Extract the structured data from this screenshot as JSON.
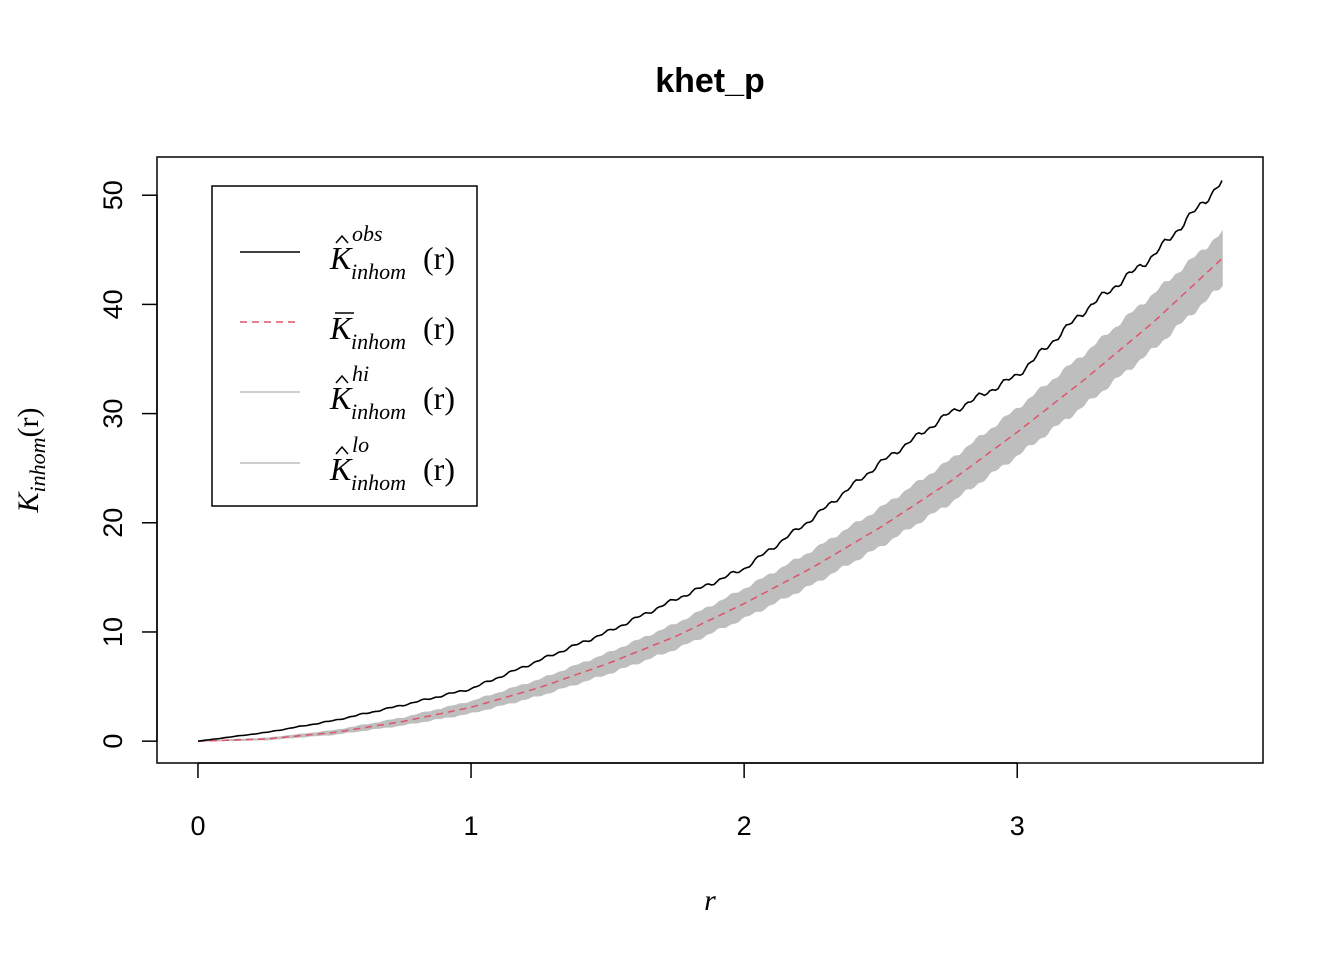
{
  "chart_data": {
    "type": "line",
    "title": "khet_p",
    "xlabel": "r",
    "ylabel": {
      "main": "K",
      "sub": "inhom",
      "arg": "(r)"
    },
    "xlim": [
      -0.15,
      3.9
    ],
    "ylim": [
      -2,
      53.5
    ],
    "x_ticks": [
      0,
      1,
      2,
      3
    ],
    "y_ticks": [
      0,
      10,
      20,
      30,
      40,
      50
    ],
    "grid": false,
    "legend_position": "top-left",
    "legend": [
      {
        "id": "obs",
        "main": "K",
        "accent": "hat",
        "sup": "obs",
        "sub": "inhom",
        "arg": "(r)",
        "color": "#000000",
        "dash": "solid"
      },
      {
        "id": "theo",
        "main": "K",
        "accent": "bar",
        "sup": "",
        "sub": "inhom",
        "arg": "(r)",
        "color": "#DF536B",
        "dash": "dashed"
      },
      {
        "id": "hi",
        "main": "K",
        "accent": "hat",
        "sup": "hi",
        "sub": "inhom",
        "arg": "(r)",
        "color": "#BEBEBE",
        "dash": "solid"
      },
      {
        "id": "lo",
        "main": "K",
        "accent": "hat",
        "sup": "lo",
        "sub": "inhom",
        "arg": "(r)",
        "color": "#BEBEBE",
        "dash": "solid"
      }
    ],
    "x": [
      0,
      0.25,
      0.5,
      0.75,
      1.0,
      1.25,
      1.5,
      1.75,
      2.0,
      2.25,
      2.5,
      2.75,
      3.0,
      3.25,
      3.5,
      3.75
    ],
    "series": [
      {
        "id": "obs",
        "color": "#000000",
        "values": [
          0,
          0.8,
          1.9,
          3.3,
          4.8,
          7.4,
          10.0,
          13.0,
          15.8,
          20.4,
          25.5,
          30.0,
          33.5,
          39.5,
          44.5,
          51.2
        ]
      },
      {
        "id": "theo",
        "color": "#DF536B",
        "values": [
          0,
          0.2,
          0.8,
          1.8,
          3.1,
          4.9,
          7.1,
          9.6,
          12.6,
          15.9,
          19.6,
          23.7,
          28.3,
          33.2,
          38.4,
          44.2
        ]
      },
      {
        "id": "hi",
        "color": "#BEBEBE",
        "values": [
          0,
          0.25,
          0.95,
          2.1,
          3.6,
          5.6,
          8.0,
          10.7,
          13.9,
          17.4,
          21.3,
          25.6,
          30.4,
          35.5,
          40.9,
          46.5
        ]
      },
      {
        "id": "lo",
        "color": "#BEBEBE",
        "values": [
          0,
          0.15,
          0.65,
          1.5,
          2.6,
          4.2,
          6.2,
          8.5,
          11.3,
          14.4,
          17.9,
          21.8,
          26.2,
          30.9,
          36.0,
          41.8
        ]
      }
    ]
  }
}
